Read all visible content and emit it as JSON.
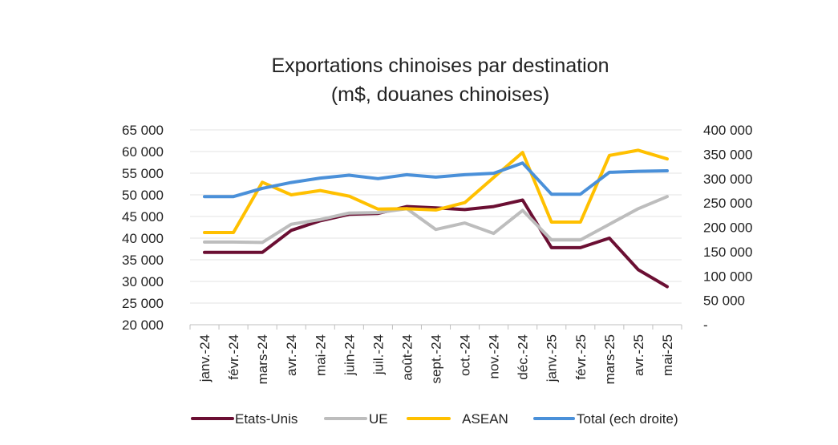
{
  "chart_data": {
    "type": "line",
    "title": [
      "Exportations chinoises par destination",
      "(m$, douanes chinoises)"
    ],
    "categories": [
      "janv.-24",
      "févr.-24",
      "mars-24",
      "avr.-24",
      "mai-24",
      "juin-24",
      "juil.-24",
      "août-24",
      "sept.-24",
      "oct.-24",
      "nov.-24",
      "déc.-24",
      "janv.-25",
      "févr.-25",
      "mars-25",
      "avr.-25",
      "mai-25"
    ],
    "y_left": {
      "range": [
        20000,
        65000
      ],
      "ticks": [
        20000,
        25000,
        30000,
        35000,
        40000,
        45000,
        50000,
        55000,
        60000,
        65000
      ],
      "tick_labels": [
        "20 000",
        "25 000",
        "30 000",
        "35 000",
        "40 000",
        "45 000",
        "50 000",
        "55 000",
        "60 000",
        "65 000"
      ]
    },
    "y_right": {
      "range": [
        0,
        400000
      ],
      "ticks": [
        0,
        50000,
        100000,
        150000,
        200000,
        250000,
        300000,
        350000,
        400000
      ],
      "tick_labels": [
        "-",
        "50 000",
        "100 000",
        "150 000",
        "200 000",
        "250 000",
        "300 000",
        "350 000",
        "400 000"
      ]
    },
    "grid": true,
    "legend_position": "bottom",
    "series": [
      {
        "name": "Etats-Unis",
        "axis": "left",
        "color": "#6b0f33",
        "values": [
          36700,
          36700,
          36700,
          41800,
          44000,
          45500,
          45700,
          47300,
          47000,
          46600,
          47300,
          48800,
          37800,
          37800,
          40000,
          32700,
          28800
        ]
      },
      {
        "name": "UE",
        "axis": "left",
        "color": "#bdbdbd",
        "values": [
          39100,
          39100,
          39000,
          43200,
          44300,
          45800,
          45900,
          46800,
          42000,
          43500,
          41100,
          46400,
          39600,
          39600,
          43200,
          46800,
          49600
        ]
      },
      {
        "name": "ASEAN",
        "axis": "left",
        "color": "#ffc000",
        "values": [
          41300,
          41300,
          52900,
          50000,
          51000,
          49700,
          46700,
          46800,
          46500,
          48200,
          54000,
          59800,
          43700,
          43700,
          59100,
          60300,
          58300
        ]
      },
      {
        "name": "Total (ech droite)",
        "axis": "right",
        "color": "#4a90d9",
        "values": [
          263000,
          263000,
          280000,
          292000,
          301000,
          307000,
          300000,
          308000,
          303000,
          308000,
          311000,
          332000,
          268000,
          268000,
          313000,
          315000,
          316000
        ]
      }
    ]
  }
}
